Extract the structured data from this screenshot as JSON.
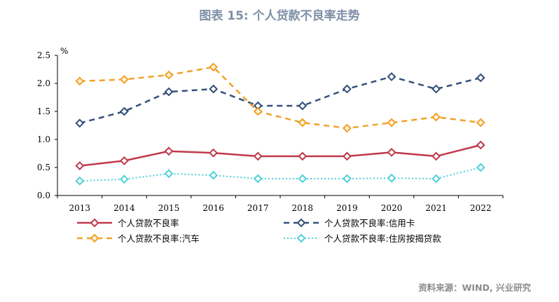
{
  "title": "图表 15: 个人贷款不良率走势",
  "source": "资料来源：WIND, 兴业研究",
  "chart_data": {
    "type": "line",
    "unit_label": "%",
    "ylim": [
      0,
      2.5
    ],
    "yticks": [
      "0.0",
      "0.5",
      "1.0",
      "1.5",
      "2.0",
      "2.5"
    ],
    "categories": [
      "2013",
      "2014",
      "2015",
      "2016",
      "2017",
      "2018",
      "2019",
      "2020",
      "2021",
      "2022"
    ],
    "series": [
      {
        "name": "个人贷款不良率",
        "color": "#c0394b",
        "dash": "solid",
        "marker_fill": "#ffffff",
        "values": [
          0.53,
          0.62,
          0.79,
          0.76,
          0.7,
          0.7,
          0.7,
          0.77,
          0.7,
          0.9
        ]
      },
      {
        "name": "个人贷款不良率:信用卡",
        "color": "#34507a",
        "dash": "dashed",
        "marker_fill": "#ffffff",
        "values": [
          1.29,
          1.5,
          1.85,
          1.9,
          1.6,
          1.6,
          1.9,
          2.12,
          1.9,
          2.1
        ]
      },
      {
        "name": "个人贷款不良率:汽车",
        "color": "#f0a128",
        "dash": "dashed",
        "marker_fill": "#fff4dd",
        "values": [
          2.04,
          2.07,
          2.15,
          2.29,
          1.5,
          1.3,
          1.2,
          1.3,
          1.4,
          1.3
        ]
      },
      {
        "name": "个人贷款不良率:住房按揭贷款",
        "color": "#4fd1d9",
        "dash": "dotted",
        "marker_fill": "#ffffff",
        "values": [
          0.26,
          0.29,
          0.39,
          0.36,
          0.3,
          0.3,
          0.3,
          0.31,
          0.3,
          0.5
        ]
      }
    ],
    "legend_position": "bottom",
    "grid": false
  }
}
